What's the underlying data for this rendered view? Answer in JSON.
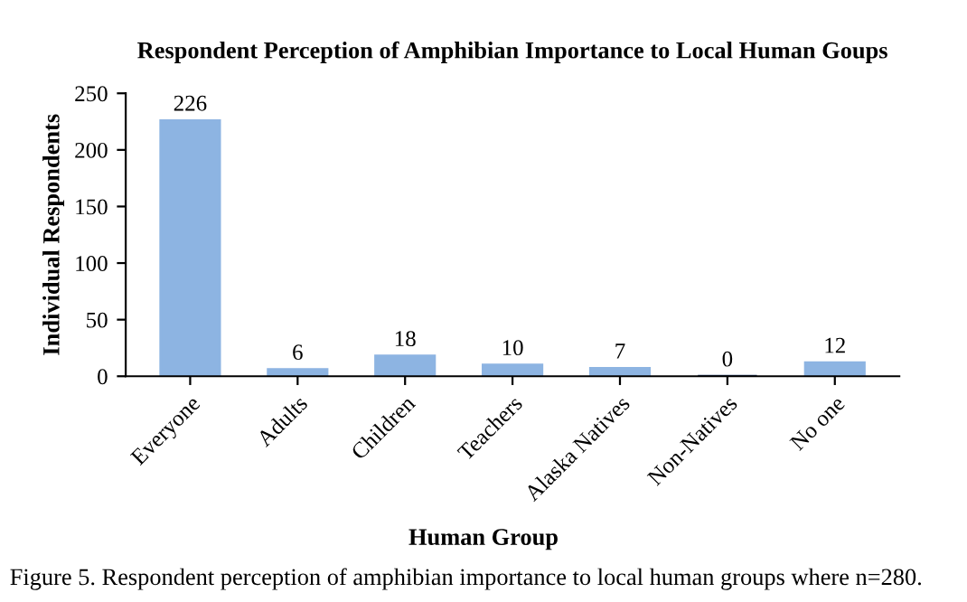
{
  "chart_data": {
    "type": "bar",
    "title": "Respondent Perception of Amphibian Importance to Local Human Goups",
    "xlabel": "Human Group",
    "ylabel": "Individual Respondents",
    "categories": [
      "Everyone",
      "Adults",
      "Children",
      "Teachers",
      "Alaska Natives",
      "Non-Natives",
      "No one"
    ],
    "values": [
      226,
      6,
      18,
      10,
      7,
      0,
      12
    ],
    "colors": [
      "#8db4e2",
      "#8db4e2",
      "#8db4e2",
      "#8db4e2",
      "#8db4e2",
      "#1f3864",
      "#8db4e2"
    ],
    "ylim": [
      0,
      250
    ],
    "yticks": [
      0,
      50,
      100,
      150,
      200,
      250
    ],
    "grid": false,
    "data_labels": true,
    "annotations": [
      "Figure 5. Respondent perception of amphibian importance to local human groups where n=280."
    ]
  }
}
